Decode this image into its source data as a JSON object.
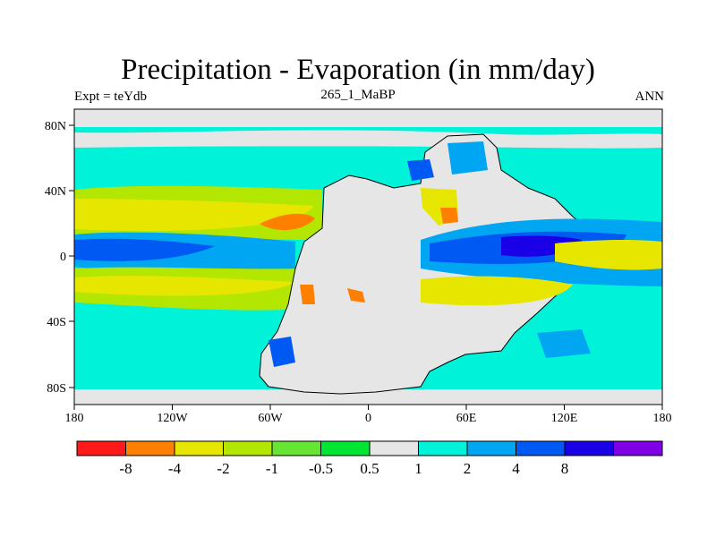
{
  "title": "Precipitation - Evaporation (in mm/day)",
  "subtitle_left": "Expt = teYdb",
  "subtitle_center": "265_1_MaBP",
  "subtitle_right": "ANN",
  "axes": {
    "x_ticks": [
      "180",
      "120W",
      "60W",
      "0",
      "60E",
      "120E",
      "180"
    ],
    "y_ticks": [
      "80N",
      "40N",
      "0",
      "40S",
      "80S"
    ]
  },
  "colorbar": {
    "labels": [
      "-8",
      "-4",
      "-2",
      "-1",
      "-0.5",
      "0.5",
      "1",
      "2",
      "4",
      "8"
    ],
    "colors": [
      "#ff1a1a",
      "#ff8000",
      "#e6e600",
      "#b3e600",
      "#66e633",
      "#00e633",
      "#e6e6e6",
      "#00f2d9",
      "#00a6f2",
      "#0059f2",
      "#1a00e6",
      "#8000e6"
    ]
  },
  "chart_data": {
    "type": "contour-map",
    "title": "Precipitation - Evaporation (in mm/day)",
    "experiment": "teYdb",
    "period": "265_1_MaBP",
    "season": "ANN",
    "projection": "cylindrical equidistant",
    "xlim": [
      -180,
      180
    ],
    "ylim": [
      -90,
      90
    ],
    "contour_levels": [
      -8,
      -4,
      -2,
      -1,
      -0.5,
      0.5,
      1,
      2,
      4,
      8
    ],
    "bands": [
      {
        "lat": 72,
        "value": 0.3
      },
      {
        "lat": 45,
        "value": 1.2
      },
      {
        "lat": 30,
        "value": -1.5
      },
      {
        "lat": 20,
        "value": -2.5
      },
      {
        "lat": 8,
        "value": 2.5
      },
      {
        "lat": 0,
        "value": 5
      },
      {
        "lat": -8,
        "value": 2.5
      },
      {
        "lat": -20,
        "value": -2.5
      },
      {
        "lat": -35,
        "value": -0.8
      },
      {
        "lat": -50,
        "value": 1.2
      },
      {
        "lat": -75,
        "value": 0.3
      }
    ]
  }
}
